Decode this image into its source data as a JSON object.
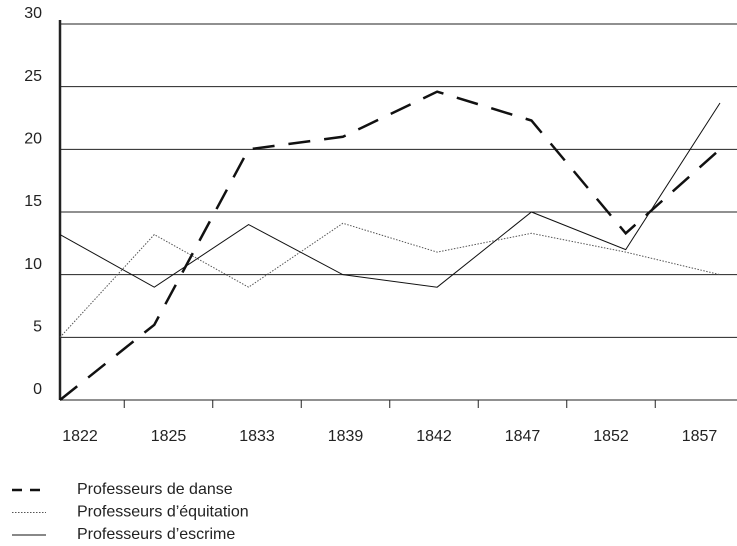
{
  "chart_data": {
    "type": "line",
    "categories": [
      "1822",
      "1825",
      "1833",
      "1839",
      "1842",
      "1847",
      "1852",
      "1857"
    ],
    "series": [
      {
        "name": "Professeurs de danse",
        "color": "#111111",
        "style": "dashed",
        "values": [
          0,
          6,
          20,
          21,
          24.6,
          22.3,
          13.3,
          20
        ]
      },
      {
        "name": "Professeurs d’équitation",
        "color": "#555555",
        "style": "dotted",
        "values": [
          5,
          13.2,
          9,
          14.1,
          11.8,
          13.3,
          11.8,
          10
        ]
      },
      {
        "name": "Professeurs d’escrime",
        "color": "#111111",
        "style": "solid",
        "values": [
          13.2,
          9,
          14,
          10,
          9,
          15,
          12,
          23.7
        ]
      }
    ],
    "ylim": [
      0,
      30
    ],
    "yticks": [
      0,
      5,
      10,
      15,
      20,
      25,
      30
    ],
    "grid": true
  }
}
